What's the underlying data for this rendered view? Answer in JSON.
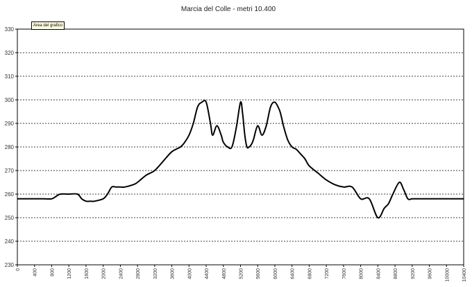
{
  "tooltip": "Area del grafico",
  "chart_data": {
    "type": "line",
    "title": "Marcia del Colle - metri 10.400",
    "xlabel": "",
    "ylabel": "",
    "ylim": [
      230,
      330
    ],
    "yticks": [
      230,
      240,
      250,
      260,
      270,
      280,
      290,
      300,
      310,
      320,
      330
    ],
    "xticks": [
      0,
      400,
      800,
      1200,
      1600,
      2000,
      2400,
      2800,
      3200,
      3600,
      4000,
      4400,
      4800,
      5200,
      5600,
      6000,
      6400,
      6800,
      7200,
      7600,
      8000,
      8400,
      8800,
      9200,
      9600,
      10000,
      10400
    ],
    "xlim": [
      0,
      10400
    ],
    "grid": "horizontal-dashed",
    "series": [
      {
        "name": "",
        "x": [
          0,
          200,
          400,
          600,
          800,
          900,
          1000,
          1200,
          1400,
          1500,
          1600,
          1700,
          1800,
          2000,
          2100,
          2200,
          2300,
          2400,
          2500,
          2700,
          2800,
          3000,
          3200,
          3400,
          3600,
          3800,
          3900,
          4000,
          4100,
          4200,
          4300,
          4400,
          4500,
          4550,
          4650,
          4750,
          4800,
          4900,
          5000,
          5100,
          5200,
          5250,
          5300,
          5350,
          5400,
          5450,
          5500,
          5600,
          5700,
          5800,
          5900,
          6000,
          6100,
          6150,
          6200,
          6300,
          6400,
          6500,
          6600,
          6700,
          6800,
          7000,
          7200,
          7400,
          7600,
          7800,
          8000,
          8200,
          8400,
          8550,
          8650,
          8750,
          8900,
          9000,
          9100,
          9200,
          9300,
          9400,
          9600,
          9700,
          9800,
          10000,
          10200,
          10400
        ],
        "values": [
          258,
          258,
          258,
          258,
          258,
          259,
          260,
          260,
          260,
          258,
          257,
          257,
          257,
          258,
          260,
          263,
          263,
          263,
          263,
          264,
          265,
          268,
          270,
          274,
          278,
          280,
          282,
          285,
          290,
          297,
          299,
          299,
          290,
          285,
          289,
          285,
          282,
          280,
          280,
          288,
          299,
          294,
          285,
          280,
          280,
          281,
          283,
          289,
          285,
          289,
          297,
          299,
          296,
          293,
          289,
          283,
          280,
          279,
          277,
          275,
          272,
          269,
          266,
          264,
          263,
          263,
          258,
          258,
          250,
          254,
          256,
          260,
          265,
          262,
          258,
          258,
          258,
          258,
          258,
          258,
          258,
          258,
          258,
          258
        ]
      }
    ]
  }
}
